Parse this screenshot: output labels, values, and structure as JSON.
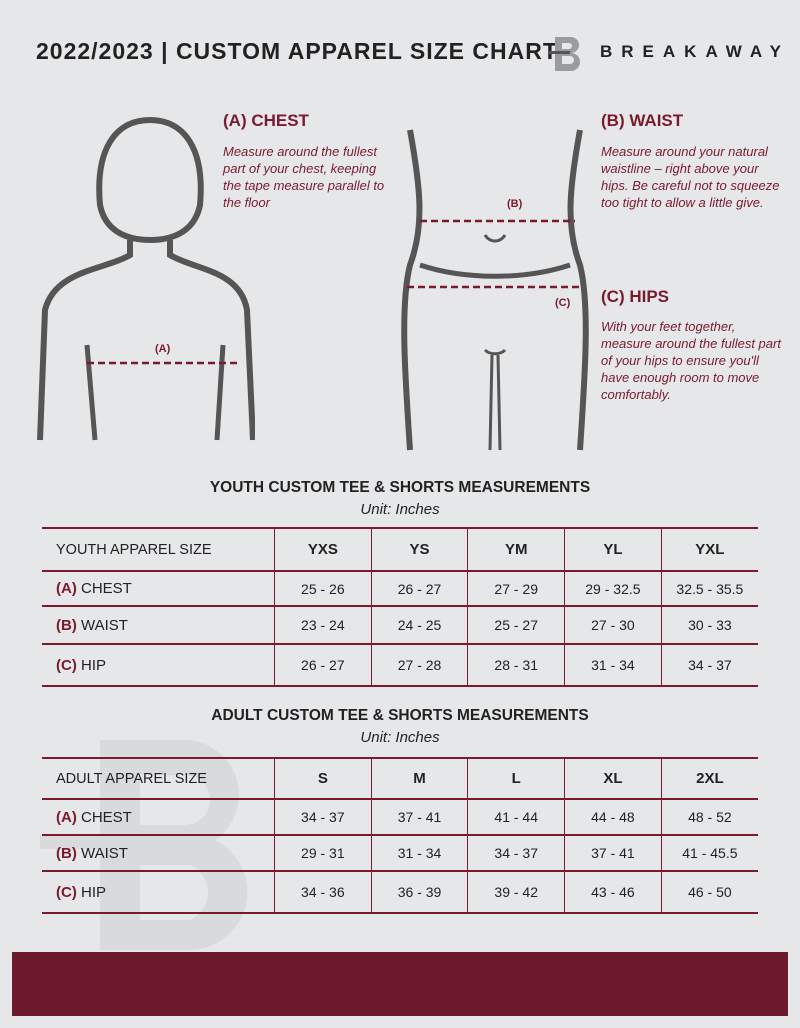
{
  "header": {
    "title": "2022/2023  |  CUSTOM APPAREL SIZE CHART",
    "brand": "BREAKAWAY"
  },
  "sections": {
    "chest": {
      "heading": "(A) CHEST",
      "text": "Measure around the fullest part of your chest, keeping the tape measure parallel to the floor",
      "marker": "(A)"
    },
    "waist": {
      "heading": "(B) WAIST",
      "text": "Measure around your natural waistline – right above your hips. Be careful not to squeeze too tight to allow a little give.",
      "marker": "(B)"
    },
    "hips": {
      "heading": "(C) HIPS",
      "text": "With your feet together, measure around the fullest part of your hips to ensure you'll have enough room to move comfortably.",
      "marker": "(C)"
    }
  },
  "youth": {
    "title": "YOUTH CUSTOM TEE & SHORTS MEASUREMENTS",
    "unit": "Unit: Inches",
    "header": [
      "YOUTH APPAREL SIZE",
      "YXS",
      "YS",
      "YM",
      "YL",
      "YXL"
    ],
    "rows": [
      {
        "code": "(A)",
        "label": "CHEST",
        "values": [
          "25 - 26",
          "26 - 27",
          "27 - 29",
          "29 - 32.5",
          "32.5 - 35.5"
        ]
      },
      {
        "code": "(B)",
        "label": "WAIST",
        "values": [
          "23 - 24",
          "24 - 25",
          "25 - 27",
          "27 - 30",
          "30 - 33"
        ]
      },
      {
        "code": "(C)",
        "label": "HIP",
        "values": [
          "26 - 27",
          "27 - 28",
          "28 - 31",
          "31 - 34",
          "34 - 37"
        ]
      }
    ]
  },
  "adult": {
    "title": "ADULT CUSTOM TEE & SHORTS MEASUREMENTS",
    "unit": "Unit: Inches",
    "header": [
      "ADULT APPAREL SIZE",
      "S",
      "M",
      "L",
      "XL",
      "2XL"
    ],
    "rows": [
      {
        "code": "(A)",
        "label": "CHEST",
        "values": [
          "34 - 37",
          "37 - 41",
          "41 - 44",
          "44 - 48",
          "48 - 52"
        ]
      },
      {
        "code": "(B)",
        "label": "WAIST",
        "values": [
          "29 - 31",
          "31 - 34",
          "34 - 37",
          "37 - 41",
          "41 - 45.5"
        ]
      },
      {
        "code": "(C)",
        "label": "HIP",
        "values": [
          "34 - 36",
          "36 - 39",
          "39 - 42",
          "43 - 46",
          "46 - 50"
        ]
      }
    ]
  },
  "colors": {
    "accent": "#7a1a2e",
    "band": "#6e1a2e",
    "background": "#e6e7e9"
  }
}
